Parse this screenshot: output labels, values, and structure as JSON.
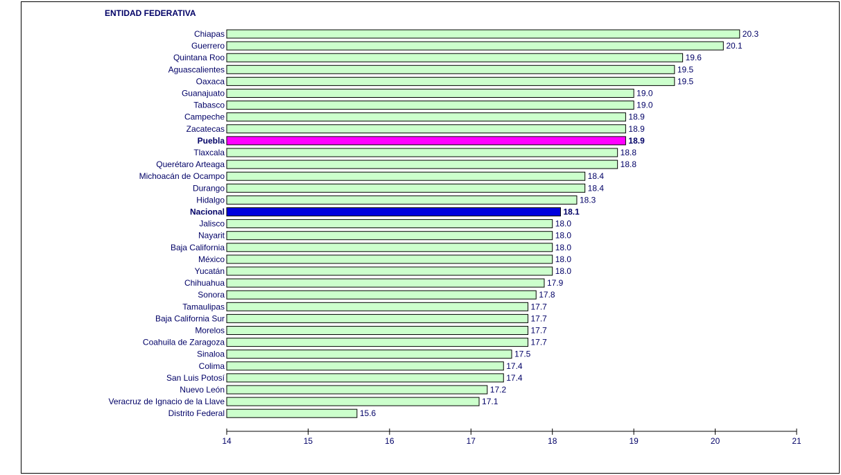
{
  "chart_data": {
    "type": "bar",
    "orientation": "horizontal",
    "category_heading": "ENTIDAD FEDERATIVA",
    "categories": [
      "Chiapas",
      "Guerrero",
      "Quintana Roo",
      "Aguascalientes",
      "Oaxaca",
      "Guanajuato",
      "Tabasco",
      "Campeche",
      "Zacatecas",
      "Puebla",
      "Tlaxcala",
      "Querétaro Arteaga",
      "Michoacán de Ocampo",
      "Durango",
      "Hidalgo",
      "Nacional",
      "Jalisco",
      "Nayarit",
      "Baja California",
      "México",
      "Yucatán",
      "Chihuahua",
      "Sonora",
      "Tamaulipas",
      "Baja California Sur",
      "Morelos",
      "Coahuila de Zaragoza",
      "Sinaloa",
      "Colima",
      "San Luis Potosí",
      "Nuevo León",
      "Veracruz de Ignacio de la Llave",
      "Distrito Federal"
    ],
    "values": [
      20.3,
      20.1,
      19.6,
      19.5,
      19.5,
      19.0,
      19.0,
      18.9,
      18.9,
      18.9,
      18.8,
      18.8,
      18.4,
      18.4,
      18.3,
      18.1,
      18.0,
      18.0,
      18.0,
      18.0,
      18.0,
      17.9,
      17.8,
      17.7,
      17.7,
      17.7,
      17.7,
      17.5,
      17.4,
      17.4,
      17.2,
      17.1,
      15.6
    ],
    "value_labels": [
      "20.3",
      "20.1",
      "19.6",
      "19.5",
      "19.5",
      "19.0",
      "19.0",
      "18.9",
      "18.9",
      "18.9",
      "18.8",
      "18.8",
      "18.4",
      "18.4",
      "18.3",
      "18.1",
      "18.0",
      "18.0",
      "18.0",
      "18.0",
      "18.0",
      "17.9",
      "17.8",
      "17.7",
      "17.7",
      "17.7",
      "17.7",
      "17.5",
      "17.4",
      "17.4",
      "17.2",
      "17.1",
      "15.6"
    ],
    "highlight": {
      "Puebla": "#ff00ff",
      "Nacional": "#0000dd"
    },
    "bold_categories": [
      "Puebla",
      "Nacional"
    ],
    "xlim": [
      14,
      21
    ],
    "xticks": [
      "14",
      "15",
      "16",
      "17",
      "18",
      "19",
      "20",
      "21"
    ],
    "grid": false,
    "colors": {
      "bar_fill": "#ccffcc",
      "bar_stroke": "#000000",
      "label_text": "#000066",
      "axis": "#000000"
    }
  }
}
